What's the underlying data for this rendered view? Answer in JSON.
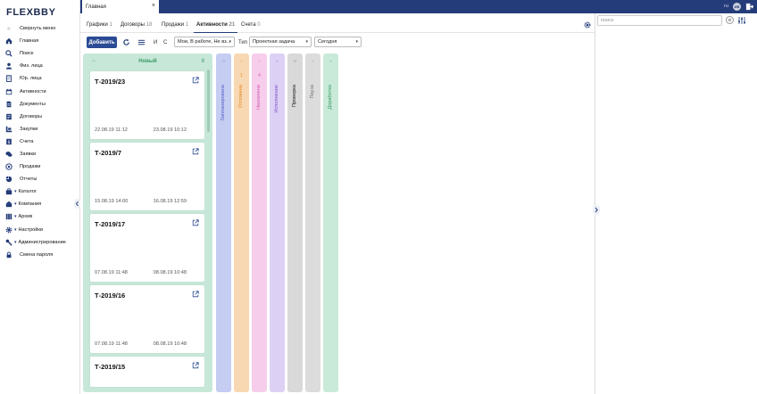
{
  "app": {
    "logo": "FLEXBBY",
    "lang": "ru",
    "user_initials": "ИВ"
  },
  "topbar": {
    "tab_title": "Главная",
    "close_symbol": "×"
  },
  "sidebar": {
    "items": [
      {
        "label": "Свернуть меню",
        "icon": "chevrons-left-icon"
      },
      {
        "label": "Главная",
        "icon": "home-icon"
      },
      {
        "label": "Поиск",
        "icon": "search-icon"
      },
      {
        "label": "Физ. лица",
        "icon": "person-icon"
      },
      {
        "label": "Юр. лица",
        "icon": "building-icon"
      },
      {
        "label": "Активности",
        "icon": "calendar-icon"
      },
      {
        "label": "Документы",
        "icon": "document-icon"
      },
      {
        "label": "Договоры",
        "icon": "contract-icon"
      },
      {
        "label": "Закупки",
        "icon": "purchase-icon"
      },
      {
        "label": "Счета",
        "icon": "invoice-icon"
      },
      {
        "label": "Заявки",
        "icon": "chat-icon"
      },
      {
        "label": "Продажи",
        "icon": "target-icon"
      },
      {
        "label": "Отчеты",
        "icon": "pie-chart-icon"
      },
      {
        "label": "Каталог",
        "icon": "catalog-icon",
        "expandable": true
      },
      {
        "label": "Компания",
        "icon": "company-icon",
        "expandable": true
      },
      {
        "label": "Архив",
        "icon": "archive-icon",
        "expandable": true
      },
      {
        "label": "Настройки",
        "icon": "gear-icon",
        "expandable": true
      },
      {
        "label": "Администрирование",
        "icon": "wrench-icon",
        "expandable": true
      },
      {
        "label": "Смена пароля",
        "icon": "lock-icon"
      }
    ]
  },
  "subtabs": [
    {
      "label": "Графики",
      "count": "1"
    },
    {
      "label": "Договоры",
      "count": "18"
    },
    {
      "label": "Продажи",
      "count": "1"
    },
    {
      "label": "Активности",
      "count": "21",
      "active": true
    },
    {
      "label": "Счета",
      "count": "0"
    }
  ],
  "toolbar": {
    "add_label": "Добавить",
    "and_label": "И",
    "c_label": "С",
    "status_value": "Мои, В работе, Не вз...",
    "type_label": "Тип",
    "type_value": "Проектная задача",
    "date_value": "Сегодня"
  },
  "board": {
    "open_column": {
      "arrow": "‹‹",
      "title": "Новый",
      "count": "8"
    },
    "cards": [
      {
        "number": "Т-2019/23",
        "created": "22.08.19 11:12",
        "due": "23.08.19 10:12"
      },
      {
        "number": "Т-2019/7",
        "created": "15.08.19 14:00",
        "due": "16.08.19 12:59"
      },
      {
        "number": "Т-2019/17",
        "created": "07.08.19 11:48",
        "due": "08.08.19 10:48"
      },
      {
        "number": "Т-2019/16",
        "created": "07.08.19 11:48",
        "due": "08.08.19 10:48"
      },
      {
        "number": "Т-2019/15",
        "created": "",
        "due": ""
      }
    ],
    "collapsed_columns": [
      {
        "title": "Запланирована",
        "count": "",
        "arrow": "››",
        "bg": "#c6cdf2",
        "fg": "#5464c8"
      },
      {
        "title": "Отложена",
        "count": "1",
        "arrow": "››",
        "bg": "#f8d8b2",
        "fg": "#e58a2e"
      },
      {
        "title": "Назначена",
        "count": "4",
        "arrow": "››",
        "bg": "#f6cdea",
        "fg": "#d45bb5"
      },
      {
        "title": "Исполнение",
        "count": "",
        "arrow": "››",
        "bg": "#ddd0f5",
        "fg": "#7a52c7"
      },
      {
        "title": "Проверка",
        "count": "",
        "arrow": "››",
        "bg": "#d9d9d9",
        "fg": "#222222"
      },
      {
        "title": "Пауза",
        "count": "",
        "arrow": "››",
        "bg": "#dcdcdc",
        "fg": "#777777"
      },
      {
        "title": "Доработка",
        "count": "",
        "arrow": "››",
        "bg": "#c9ead8",
        "fg": "#3a9a68"
      }
    ]
  },
  "rightpanel": {
    "search_placeholder": "поиск",
    "clear_symbol": "⊘"
  },
  "colors": {
    "brand": "#243d7a",
    "primary_button": "#2a4b94",
    "open_column": "#c7e8d8"
  }
}
